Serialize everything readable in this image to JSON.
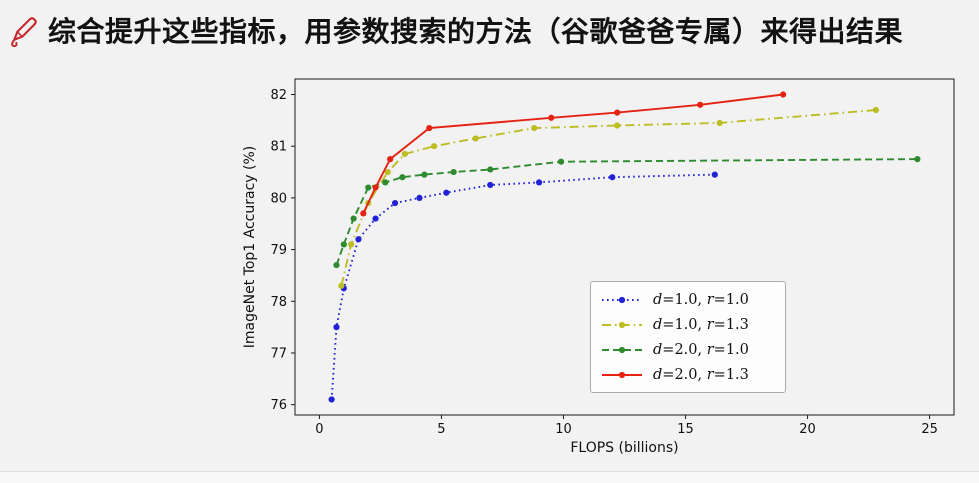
{
  "header": {
    "icon": "pen-icon",
    "title": "综合提升这些指标，用参数搜索的方法（谷歌爸爸专属）来得出结果"
  },
  "chart_data": {
    "type": "line",
    "title": "",
    "xlabel": "FLOPS (billions)",
    "ylabel": "ImageNet Top1 Accuracy (%)",
    "xlim": [
      -1,
      26
    ],
    "ylim": [
      75.8,
      82.3
    ],
    "xticks": [
      0,
      5,
      10,
      15,
      20,
      25
    ],
    "yticks": [
      76,
      77,
      78,
      79,
      80,
      81,
      82
    ],
    "grid": false,
    "legend_position": "lower right",
    "series": [
      {
        "name": "d=1.0, r=1.0",
        "color": "#2121d8",
        "linestyle": "dotted",
        "marker": "circle",
        "points": [
          [
            0.5,
            76.1
          ],
          [
            0.7,
            77.5
          ],
          [
            1.0,
            78.25
          ],
          [
            1.6,
            79.2
          ],
          [
            2.3,
            79.6
          ],
          [
            3.1,
            79.9
          ],
          [
            4.1,
            80.0
          ],
          [
            5.2,
            80.1
          ],
          [
            7.0,
            80.25
          ],
          [
            9.0,
            80.3
          ],
          [
            12.0,
            80.4
          ],
          [
            16.2,
            80.45
          ]
        ]
      },
      {
        "name": "d=1.0, r=1.3",
        "color": "#bcbd22",
        "linestyle": "dashdot",
        "marker": "circle",
        "points": [
          [
            0.9,
            78.3
          ],
          [
            1.3,
            79.1
          ],
          [
            2.0,
            79.9
          ],
          [
            2.8,
            80.5
          ],
          [
            3.5,
            80.85
          ],
          [
            4.7,
            81.0
          ],
          [
            6.4,
            81.15
          ],
          [
            8.8,
            81.35
          ],
          [
            12.2,
            81.4
          ],
          [
            16.4,
            81.45
          ],
          [
            22.8,
            81.7
          ]
        ]
      },
      {
        "name": "d=2.0, r=1.0",
        "color": "#2e8b2e",
        "linestyle": "dashed",
        "marker": "circle",
        "points": [
          [
            0.7,
            78.7
          ],
          [
            1.0,
            79.1
          ],
          [
            1.4,
            79.6
          ],
          [
            2.0,
            80.2
          ],
          [
            2.7,
            80.3
          ],
          [
            3.4,
            80.4
          ],
          [
            4.3,
            80.45
          ],
          [
            5.5,
            80.5
          ],
          [
            7.0,
            80.55
          ],
          [
            9.9,
            80.7
          ],
          [
            24.5,
            80.75
          ]
        ]
      },
      {
        "name": "d=2.0, r=1.3",
        "color": "#e42313",
        "linestyle": "solid",
        "marker": "circle",
        "points": [
          [
            1.8,
            79.7
          ],
          [
            2.3,
            80.2
          ],
          [
            2.9,
            80.75
          ],
          [
            4.5,
            81.35
          ],
          [
            9.5,
            81.55
          ],
          [
            12.2,
            81.65
          ],
          [
            15.6,
            81.8
          ],
          [
            19.0,
            82.0
          ]
        ]
      }
    ]
  }
}
